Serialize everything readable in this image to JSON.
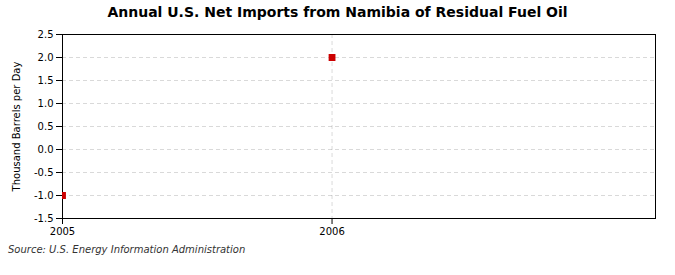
{
  "chart_data": {
    "type": "scatter",
    "title": "Annual U.S. Net Imports from Namibia of Residual Fuel Oil",
    "ylabel": "Thousand Barrels per Day",
    "source": "Source: U.S. Energy Information Administration",
    "x": [
      2005,
      2006
    ],
    "values": [
      -1.0,
      2.0
    ],
    "color": "#cc0000",
    "marker": "square",
    "xlim": [
      2005.0,
      2007.2
    ],
    "xticks": [
      2005,
      2006
    ],
    "ylim": [
      -1.5,
      2.5
    ],
    "yticks": [
      -1.5,
      {
        "value": -1.0,
        "label": "-1.0"
      },
      -0.5,
      {
        "value": 0.0,
        "label": "0.0"
      },
      0.5,
      {
        "value": 1.0,
        "label": "1.0"
      },
      1.5,
      {
        "value": 2.0,
        "label": "2.0"
      },
      2.5
    ],
    "grid": true
  }
}
